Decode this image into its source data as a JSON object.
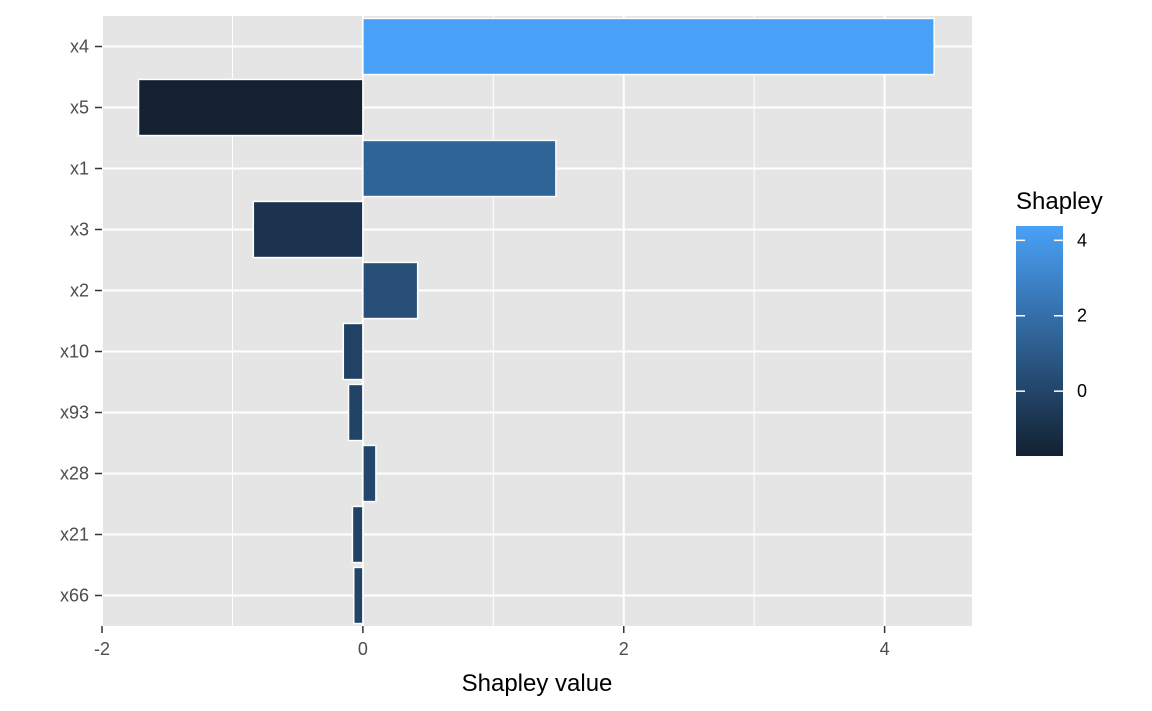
{
  "chart_data": {
    "type": "bar",
    "orientation": "horizontal",
    "title": "",
    "xlabel": "Shapley value",
    "ylabel": "",
    "categories": [
      "x4",
      "x5",
      "x1",
      "x3",
      "x2",
      "x10",
      "x93",
      "x28",
      "x21",
      "x66"
    ],
    "values": [
      4.38,
      -1.72,
      1.48,
      -0.84,
      0.42,
      -0.15,
      -0.11,
      0.1,
      -0.08,
      -0.07
    ],
    "xlim": [
      -2.0,
      4.67
    ],
    "xticks": [
      -2,
      0,
      2,
      4
    ],
    "xtick_labels": [
      "-2",
      "0",
      "2",
      "4"
    ],
    "grid": true,
    "panel_background": "#e5e5e5",
    "legend": {
      "title": "Shapley",
      "placement": "right",
      "type": "colorbar",
      "ticks": [
        4,
        2,
        0
      ],
      "tick_labels": [
        "4",
        "2",
        "0"
      ],
      "range": [
        -1.72,
        4.38
      ],
      "color_low": "#132131",
      "color_high": "#49a1f7"
    }
  }
}
